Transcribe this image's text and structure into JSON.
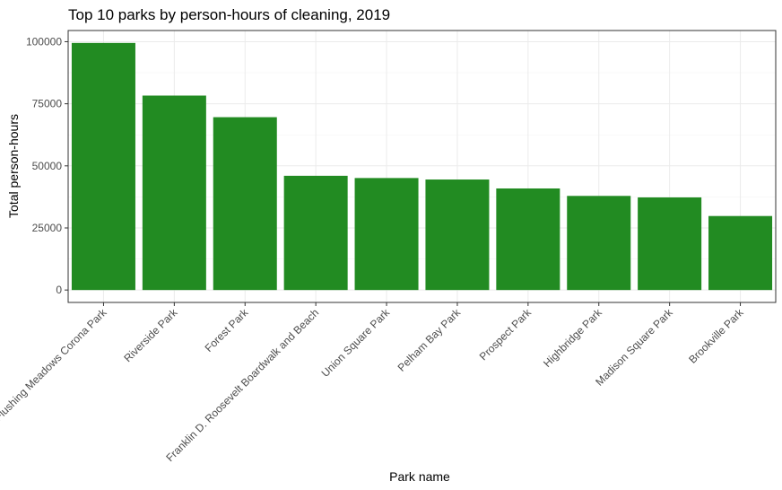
{
  "chart_data": {
    "type": "bar",
    "title": "Top 10 parks by person-hours of cleaning, 2019",
    "xlabel": "Park name",
    "ylabel": "Total person-hours",
    "categories": [
      "Flushing Meadows Corona Park",
      "Riverside Park",
      "Forest Park",
      "Franklin D. Roosevelt Boardwalk and Beach",
      "Union Square Park",
      "Pelham Bay Park",
      "Prospect Park",
      "Highbridge Park",
      "Madison Square Park",
      "Brookville Park"
    ],
    "values": [
      99500,
      78300,
      69600,
      46000,
      45100,
      44500,
      40900,
      37900,
      37300,
      29800
    ],
    "ylim": [
      -5000,
      104500
    ],
    "yticks": [
      0,
      25000,
      50000,
      75000,
      100000
    ],
    "ytick_labels": [
      "0",
      "25000",
      "50000",
      "75000",
      "100000"
    ],
    "grid": true,
    "legend": "none",
    "colors": {
      "bar": "#228b22",
      "grid_major": "#ebebeb",
      "grid_minor": "#f5f5f5",
      "panel_border": "#333333",
      "tick_text": "#4d4d4d"
    }
  }
}
